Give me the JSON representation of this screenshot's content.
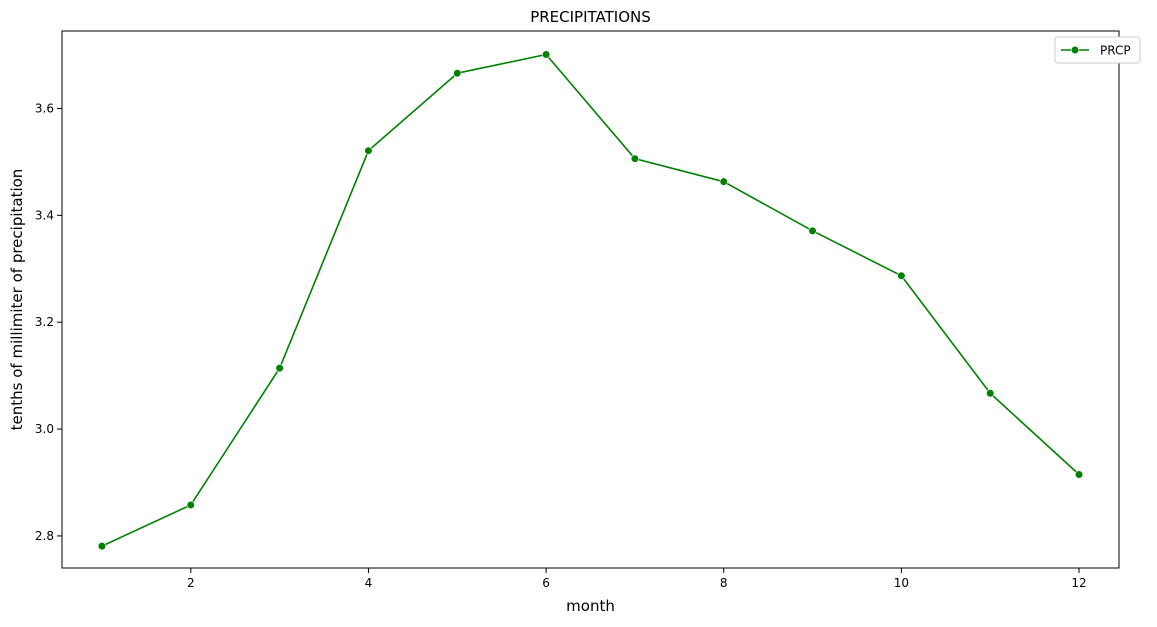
{
  "chart_data": {
    "type": "line",
    "title": "PRECIPITATIONS",
    "xlabel": "month",
    "ylabel": "tenths of millimiter of precipitation",
    "x": [
      1,
      2,
      3,
      4,
      5,
      6,
      7,
      8,
      9,
      10,
      11,
      12
    ],
    "series": [
      {
        "name": "PRCP",
        "color": "#008000",
        "marker": "circle",
        "values": [
          2.781,
          2.858,
          3.114,
          3.521,
          3.666,
          3.701,
          3.506,
          3.463,
          3.371,
          3.287,
          3.067,
          2.915
        ]
      }
    ],
    "xlim": [
      0.55,
      12.45
    ],
    "ylim": [
      2.74,
      3.745
    ],
    "xticks": [
      2,
      4,
      6,
      8,
      10,
      12
    ],
    "xtick_labels": [
      "2",
      "4",
      "6",
      "8",
      "10",
      "12"
    ],
    "yticks": [
      2.8,
      3.0,
      3.2,
      3.4,
      3.6
    ],
    "ytick_labels": [
      "2.8",
      "3.0",
      "3.2",
      "3.4",
      "3.6"
    ],
    "grid": false,
    "legend_position": "top-right"
  }
}
